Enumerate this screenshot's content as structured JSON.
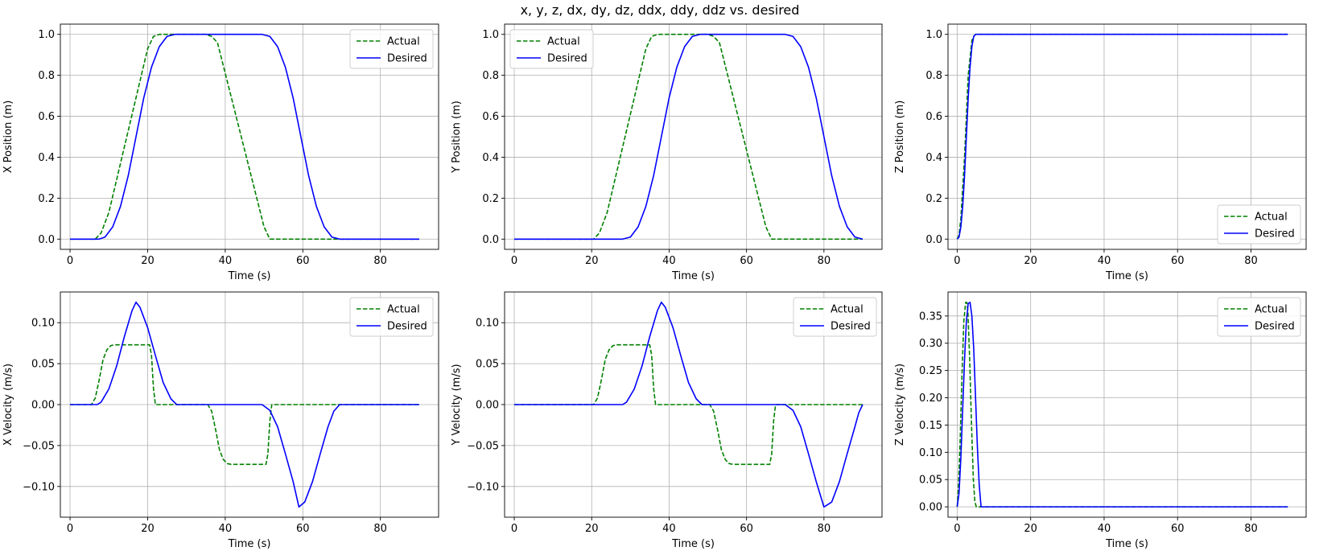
{
  "figure": {
    "suptitle": "x, y, z, dx, dy, dz, ddx, ddy, ddz vs. desired"
  },
  "colors": {
    "actual": "#008000",
    "desired": "#0000ff",
    "grid": "#b0b0b0"
  },
  "chart_data": [
    {
      "type": "line",
      "id": "x-position",
      "xlabel": "Time (s)",
      "ylabel": "X Position (m)",
      "xlim": [
        -2.5,
        95
      ],
      "ylim": [
        -0.05,
        1.05
      ],
      "xticks": [
        0,
        20,
        40,
        60,
        80
      ],
      "yticks": [
        0.0,
        0.2,
        0.4,
        0.6,
        0.8,
        1.0
      ],
      "xtick_labels": [
        "0",
        "20",
        "40",
        "60",
        "80"
      ],
      "ytick_labels": [
        "0.0",
        "0.2",
        "0.4",
        "0.6",
        "0.8",
        "1.0"
      ],
      "legend": {
        "location": "upper-right",
        "entries": [
          "Actual",
          "Desired"
        ]
      },
      "series": [
        {
          "name": "Actual",
          "style": "dashed",
          "x": [
            0,
            6.5,
            8,
            10,
            20,
            21.5,
            23,
            35,
            36.5,
            38,
            50,
            51.5,
            53,
            90
          ],
          "y": [
            0,
            0,
            0.03,
            0.13,
            0.93,
            0.99,
            1.0,
            1.0,
            0.99,
            0.96,
            0.06,
            0.0,
            0,
            0
          ]
        },
        {
          "name": "Desired",
          "style": "solid",
          "x": [
            0,
            7.5,
            9,
            11,
            13,
            15,
            17,
            19,
            21,
            23,
            25,
            27,
            49.5,
            51.5,
            53.5,
            55.5,
            57.5,
            59.5,
            61.5,
            63.5,
            65.5,
            67.5,
            69.5,
            90
          ],
          "y": [
            0,
            0,
            0.01,
            0.06,
            0.16,
            0.31,
            0.5,
            0.69,
            0.84,
            0.94,
            0.99,
            1.0,
            1.0,
            0.99,
            0.94,
            0.84,
            0.69,
            0.5,
            0.31,
            0.16,
            0.06,
            0.01,
            0,
            0
          ]
        }
      ]
    },
    {
      "type": "line",
      "id": "y-position",
      "xlabel": "Time (s)",
      "ylabel": "Y Position (m)",
      "xlim": [
        -2.5,
        95
      ],
      "ylim": [
        -0.05,
        1.05
      ],
      "xticks": [
        0,
        20,
        40,
        60,
        80
      ],
      "yticks": [
        0.0,
        0.2,
        0.4,
        0.6,
        0.8,
        1.0
      ],
      "xtick_labels": [
        "0",
        "20",
        "40",
        "60",
        "80"
      ],
      "ytick_labels": [
        "0.0",
        "0.2",
        "0.4",
        "0.6",
        "0.8",
        "1.0"
      ],
      "legend": {
        "location": "upper-left",
        "entries": [
          "Actual",
          "Desired"
        ]
      },
      "series": [
        {
          "name": "Actual",
          "style": "dashed",
          "x": [
            0,
            20.5,
            22,
            24,
            34,
            35.5,
            37,
            50,
            51.5,
            53,
            65,
            66.5,
            68,
            90
          ],
          "y": [
            0,
            0,
            0.03,
            0.13,
            0.93,
            0.99,
            1.0,
            1.0,
            0.99,
            0.96,
            0.06,
            0.0,
            0,
            0
          ]
        },
        {
          "name": "Desired",
          "style": "solid",
          "x": [
            0,
            28,
            30,
            32,
            34,
            36,
            38,
            40,
            42,
            44,
            46,
            48,
            70,
            72,
            74,
            76,
            78,
            80,
            82,
            84,
            86,
            88,
            90
          ],
          "y": [
            0,
            0,
            0.01,
            0.06,
            0.16,
            0.31,
            0.5,
            0.69,
            0.84,
            0.94,
            0.99,
            1.0,
            1.0,
            0.99,
            0.94,
            0.84,
            0.69,
            0.5,
            0.31,
            0.16,
            0.06,
            0.01,
            0
          ]
        }
      ]
    },
    {
      "type": "line",
      "id": "z-position",
      "xlabel": "Time (s)",
      "ylabel": "Z Position (m)",
      "xlim": [
        -2.5,
        95
      ],
      "ylim": [
        -0.05,
        1.05
      ],
      "xticks": [
        0,
        20,
        40,
        60,
        80
      ],
      "yticks": [
        0.0,
        0.2,
        0.4,
        0.6,
        0.8,
        1.0
      ],
      "xtick_labels": [
        "0",
        "20",
        "40",
        "60",
        "80"
      ],
      "ytick_labels": [
        "0.0",
        "0.2",
        "0.4",
        "0.6",
        "0.8",
        "1.0"
      ],
      "legend": {
        "location": "lower-right",
        "entries": [
          "Actual",
          "Desired"
        ]
      },
      "series": [
        {
          "name": "Actual",
          "style": "dashed",
          "x": [
            0,
            0.5,
            1,
            2,
            3,
            4,
            4.5,
            5,
            90
          ],
          "y": [
            0,
            0.02,
            0.1,
            0.4,
            0.8,
            0.97,
            0.99,
            1.0,
            1.0
          ]
        },
        {
          "name": "Desired",
          "style": "solid",
          "x": [
            0,
            0.5,
            1,
            1.5,
            2,
            2.5,
            3,
            3.5,
            4,
            4.5,
            5,
            5.5,
            6,
            90
          ],
          "y": [
            0,
            0.01,
            0.06,
            0.16,
            0.31,
            0.5,
            0.69,
            0.84,
            0.94,
            0.99,
            1.0,
            1.0,
            1.0,
            1.0
          ]
        }
      ]
    },
    {
      "type": "line",
      "id": "x-velocity",
      "xlabel": "Time (s)",
      "ylabel": "X Velocity (m/s)",
      "xlim": [
        -2.5,
        95
      ],
      "ylim": [
        -0.1375,
        0.1375
      ],
      "xticks": [
        0,
        20,
        40,
        60,
        80
      ],
      "yticks": [
        -0.1,
        -0.05,
        0.0,
        0.05,
        0.1
      ],
      "xtick_labels": [
        "0",
        "20",
        "40",
        "60",
        "80"
      ],
      "ytick_labels": [
        "−0.10",
        "−0.05",
        "0.00",
        "0.05",
        "0.10"
      ],
      "legend": {
        "location": "upper-right",
        "entries": [
          "Actual",
          "Desired"
        ]
      },
      "series": [
        {
          "name": "Actual",
          "style": "dashed",
          "x": [
            0,
            5.5,
            6.5,
            7.5,
            8.5,
            9.5,
            10.5,
            11.5,
            20.5,
            21,
            21.5,
            22,
            35.5,
            36.5,
            37.5,
            38.5,
            39.5,
            40.5,
            41.5,
            50.5,
            51,
            51.5,
            52,
            90
          ],
          "y": [
            0,
            0,
            0.008,
            0.03,
            0.055,
            0.067,
            0.072,
            0.073,
            0.073,
            0.06,
            0.02,
            0,
            0,
            -0.008,
            -0.03,
            -0.055,
            -0.067,
            -0.072,
            -0.073,
            -0.073,
            -0.06,
            -0.02,
            0,
            0
          ]
        },
        {
          "name": "Desired",
          "style": "solid",
          "x": [
            0,
            7,
            8,
            10,
            12,
            14,
            16,
            17,
            18,
            20,
            22,
            24,
            26,
            27.5,
            49.5,
            51.5,
            53.5,
            55.5,
            57.5,
            59,
            60.5,
            62.5,
            64.5,
            66.5,
            68,
            69.5,
            90
          ],
          "y": [
            0,
            0,
            0.003,
            0.019,
            0.047,
            0.083,
            0.115,
            0.125,
            0.119,
            0.094,
            0.06,
            0.027,
            0.007,
            0,
            0,
            -0.007,
            -0.027,
            -0.06,
            -0.094,
            -0.125,
            -0.119,
            -0.094,
            -0.06,
            -0.027,
            -0.008,
            0,
            0
          ]
        }
      ]
    },
    {
      "type": "line",
      "id": "y-velocity",
      "xlabel": "Time (s)",
      "ylabel": "Y Velocity (m/s)",
      "xlim": [
        -2.5,
        95
      ],
      "ylim": [
        -0.1375,
        0.1375
      ],
      "xticks": [
        0,
        20,
        40,
        60,
        80
      ],
      "yticks": [
        -0.1,
        -0.05,
        0.0,
        0.05,
        0.1
      ],
      "xtick_labels": [
        "0",
        "20",
        "40",
        "60",
        "80"
      ],
      "ytick_labels": [
        "−0.10",
        "−0.05",
        "0.00",
        "0.05",
        "0.10"
      ],
      "legend": {
        "location": "upper-right",
        "entries": [
          "Actual",
          "Desired"
        ]
      },
      "series": [
        {
          "name": "Actual",
          "style": "dashed",
          "x": [
            0,
            20.5,
            21.5,
            22.5,
            23.5,
            24.5,
            25.5,
            26.5,
            35,
            35.5,
            36,
            36.5,
            50.5,
            51.5,
            52.5,
            53.5,
            54.5,
            55.5,
            56.5,
            66,
            66.5,
            67,
            67.5,
            90
          ],
          "y": [
            0,
            0,
            0.008,
            0.03,
            0.055,
            0.067,
            0.072,
            0.073,
            0.073,
            0.06,
            0.02,
            0,
            0,
            -0.008,
            -0.03,
            -0.055,
            -0.067,
            -0.072,
            -0.073,
            -0.073,
            -0.06,
            -0.02,
            0,
            0
          ]
        },
        {
          "name": "Desired",
          "style": "solid",
          "x": [
            0,
            28,
            29,
            31,
            33,
            35,
            37,
            38,
            39,
            41,
            43,
            45,
            47,
            48.5,
            70,
            72,
            74,
            76,
            78,
            80,
            82,
            84,
            86,
            88,
            89,
            90
          ],
          "y": [
            0,
            0,
            0.003,
            0.019,
            0.047,
            0.083,
            0.115,
            0.125,
            0.119,
            0.094,
            0.06,
            0.027,
            0.007,
            0,
            0,
            -0.007,
            -0.027,
            -0.06,
            -0.094,
            -0.125,
            -0.119,
            -0.094,
            -0.06,
            -0.027,
            -0.01,
            0
          ]
        }
      ]
    },
    {
      "type": "line",
      "id": "z-velocity",
      "xlabel": "Time (s)",
      "ylabel": "Z Velocity (m/s)",
      "xlim": [
        -2.5,
        95
      ],
      "ylim": [
        -0.019,
        0.394
      ],
      "xticks": [
        0,
        20,
        40,
        60,
        80
      ],
      "yticks": [
        0.0,
        0.05,
        0.1,
        0.15,
        0.2,
        0.25,
        0.3,
        0.35
      ],
      "xtick_labels": [
        "0",
        "20",
        "40",
        "60",
        "80"
      ],
      "ytick_labels": [
        "0.00",
        "0.05",
        "0.10",
        "0.15",
        "0.20",
        "0.25",
        "0.30",
        "0.35"
      ],
      "legend": {
        "location": "upper-right",
        "entries": [
          "Actual",
          "Desired"
        ]
      },
      "series": [
        {
          "name": "Actual",
          "style": "dashed",
          "x": [
            0,
            0.3,
            0.8,
            1.3,
            1.8,
            2.3,
            2.6,
            2.9,
            3.4,
            3.9,
            4.4,
            4.8,
            5.2,
            90
          ],
          "y": [
            0,
            0.03,
            0.12,
            0.24,
            0.34,
            0.375,
            0.375,
            0.36,
            0.27,
            0.15,
            0.05,
            0.01,
            0,
            0
          ]
        },
        {
          "name": "Desired",
          "style": "solid",
          "x": [
            0,
            0.5,
            1,
            1.5,
            2,
            2.5,
            3,
            3.5,
            4,
            4.5,
            5,
            5.5,
            6,
            6.5,
            90
          ],
          "y": [
            0,
            0.025,
            0.09,
            0.18,
            0.27,
            0.34,
            0.373,
            0.375,
            0.35,
            0.29,
            0.2,
            0.11,
            0.04,
            0,
            0
          ]
        }
      ]
    }
  ]
}
